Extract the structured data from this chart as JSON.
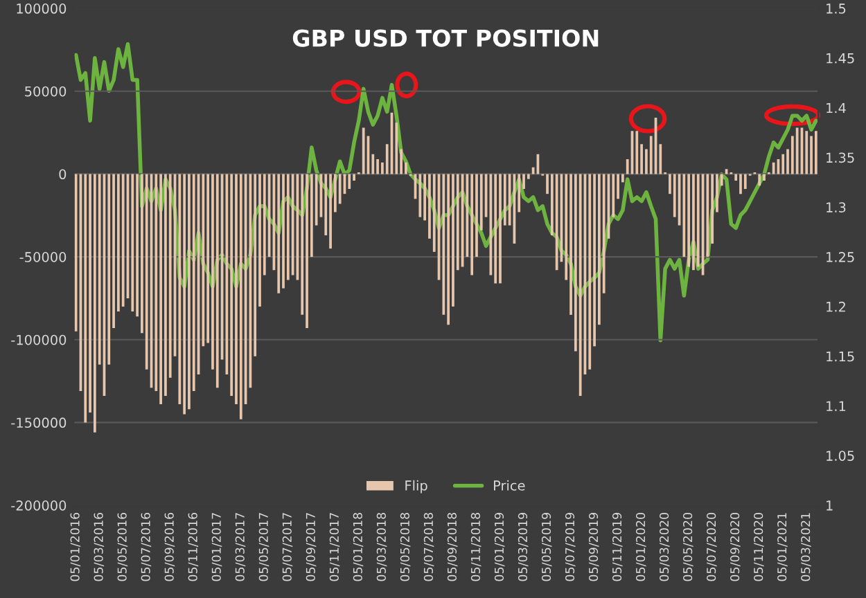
{
  "chart_data": {
    "type": "bar",
    "title": "GBP USD TOT POSITION",
    "categories": [
      "05/01/2016",
      null,
      null,
      null,
      null,
      "05/03/2016",
      null,
      null,
      null,
      null,
      "05/05/2016",
      null,
      null,
      null,
      null,
      "05/07/2016",
      null,
      null,
      null,
      null,
      "05/09/2016",
      null,
      null,
      null,
      null,
      "05/11/2016",
      null,
      null,
      null,
      null,
      "05/01/2017",
      null,
      null,
      null,
      null,
      "05/03/2017",
      null,
      null,
      null,
      null,
      "05/05/2017",
      null,
      null,
      null,
      null,
      "05/07/2017",
      null,
      null,
      null,
      null,
      "05/09/2017",
      null,
      null,
      null,
      null,
      "05/11/2017",
      null,
      null,
      null,
      null,
      "05/01/2018",
      null,
      null,
      null,
      null,
      "05/03/2018",
      null,
      null,
      null,
      null,
      "05/05/2018",
      null,
      null,
      null,
      null,
      "05/07/2018",
      null,
      null,
      null,
      null,
      "05/09/2018",
      null,
      null,
      null,
      null,
      "05/11/2018",
      null,
      null,
      null,
      null,
      "05/01/2019",
      null,
      null,
      null,
      null,
      "05/03/2019",
      null,
      null,
      null,
      null,
      "05/05/2019",
      null,
      null,
      null,
      null,
      "05/07/2019",
      null,
      null,
      null,
      null,
      "05/09/2019",
      null,
      null,
      null,
      null,
      "05/11/2019",
      null,
      null,
      null,
      null,
      "05/01/2020",
      null,
      null,
      null,
      null,
      "05/03/2020",
      null,
      null,
      null,
      null,
      "05/05/2020",
      null,
      null,
      null,
      null,
      "05/07/2020",
      null,
      null,
      null,
      null,
      "05/09/2020",
      null,
      null,
      null,
      null,
      "05/11/2020",
      null,
      null,
      null,
      null,
      "05/01/2021",
      null,
      null,
      null,
      null,
      "05/03/2021",
      null,
      null
    ],
    "series": [
      {
        "name": "Flip",
        "color": "#e6c7ae",
        "values": [
          -95000,
          -131000,
          -150000,
          -144000,
          -156000,
          -115000,
          -134000,
          -115000,
          -93000,
          -83000,
          -80000,
          -75000,
          -83000,
          -86000,
          -96000,
          -118000,
          -129000,
          -131000,
          -139000,
          -134000,
          -123000,
          -110000,
          -139000,
          -145000,
          -142000,
          -131000,
          -121000,
          -104000,
          -102000,
          -118000,
          -129000,
          -112000,
          -121000,
          -134000,
          -139000,
          -148000,
          -139000,
          -129000,
          -110000,
          -80000,
          -61000,
          -50000,
          -58000,
          -72000,
          -69000,
          -64000,
          -61000,
          -64000,
          -85000,
          -93000,
          -50000,
          -31000,
          -26000,
          -37000,
          -45000,
          -23000,
          -18000,
          -12000,
          -9000,
          -4000,
          1000,
          28000,
          23000,
          12000,
          9000,
          7000,
          18000,
          37000,
          31000,
          15000,
          7000,
          -1000,
          -15000,
          -26000,
          -28000,
          -39000,
          -47000,
          -64000,
          -85000,
          -91000,
          -80000,
          -58000,
          -56000,
          -50000,
          -61000,
          -50000,
          -34000,
          -26000,
          -61000,
          -66000,
          -66000,
          -31000,
          -31000,
          -42000,
          -23000,
          -9000,
          -3000,
          4000,
          12000,
          -1000,
          -12000,
          -37000,
          -58000,
          -53000,
          -64000,
          -85000,
          -107000,
          -134000,
          -121000,
          -118000,
          -104000,
          -91000,
          -72000,
          -39000,
          -26000,
          -15000,
          -5000,
          9000,
          26000,
          26000,
          18000,
          15000,
          23000,
          34000,
          18000,
          1000,
          -12000,
          -26000,
          -31000,
          -50000,
          -56000,
          -58000,
          -56000,
          -61000,
          -50000,
          -42000,
          -23000,
          -7000,
          3000,
          1000,
          -4000,
          -12000,
          -9000,
          -1000,
          1000,
          -7000,
          -4000,
          1000,
          7000,
          9000,
          12000,
          15000,
          23000,
          28000,
          28000,
          26000,
          23000,
          26000
        ]
      },
      {
        "name": "Price",
        "type": "line",
        "axis": "y2",
        "color": "#6db33f",
        "values": [
          1.453,
          1.428,
          1.435,
          1.387,
          1.45,
          1.419,
          1.446,
          1.417,
          1.428,
          1.459,
          1.441,
          1.464,
          1.428,
          1.428,
          1.301,
          1.319,
          1.306,
          1.319,
          1.297,
          1.328,
          1.319,
          1.297,
          1.229,
          1.22,
          1.256,
          1.247,
          1.274,
          1.243,
          1.234,
          1.22,
          1.247,
          1.252,
          1.243,
          1.238,
          1.22,
          1.243,
          1.238,
          1.252,
          1.292,
          1.301,
          1.301,
          1.288,
          1.283,
          1.274,
          1.306,
          1.31,
          1.301,
          1.297,
          1.292,
          1.319,
          1.36,
          1.337,
          1.324,
          1.319,
          1.31,
          1.328,
          1.346,
          1.333,
          1.337,
          1.365,
          1.387,
          1.419,
          1.396,
          1.383,
          1.392,
          1.41,
          1.396,
          1.423,
          1.392,
          1.355,
          1.346,
          1.333,
          1.328,
          1.324,
          1.319,
          1.31,
          1.297,
          1.279,
          1.292,
          1.292,
          1.301,
          1.31,
          1.315,
          1.301,
          1.292,
          1.283,
          1.274,
          1.261,
          1.27,
          1.279,
          1.288,
          1.297,
          1.301,
          1.315,
          1.328,
          1.31,
          1.306,
          1.31,
          1.297,
          1.301,
          1.283,
          1.274,
          1.27,
          1.256,
          1.252,
          1.243,
          1.22,
          1.211,
          1.22,
          1.225,
          1.229,
          1.234,
          1.256,
          1.283,
          1.292,
          1.288,
          1.297,
          1.328,
          1.306,
          1.31,
          1.306,
          1.315,
          1.301,
          1.288,
          1.166,
          1.238,
          1.247,
          1.238,
          1.247,
          1.211,
          1.247,
          1.265,
          1.238,
          1.243,
          1.247,
          1.297,
          1.31,
          1.333,
          1.328,
          1.283,
          1.279,
          1.292,
          1.297,
          1.306,
          1.315,
          1.324,
          1.333,
          1.351,
          1.365,
          1.36,
          1.369,
          1.378,
          1.392,
          1.392,
          1.387,
          1.392,
          1.378,
          1.387
        ]
      }
    ],
    "ylim": [
      -200000,
      100000
    ],
    "yticks": [
      -200000,
      -150000,
      -100000,
      -50000,
      0,
      50000,
      100000
    ],
    "y2lim": [
      1,
      1.5
    ],
    "y2ticks": [
      1,
      1.05,
      1.1,
      1.15,
      1.2,
      1.25,
      1.3,
      1.35,
      1.4,
      1.45,
      1.5
    ],
    "grid": "y",
    "legend": "bottom"
  }
}
